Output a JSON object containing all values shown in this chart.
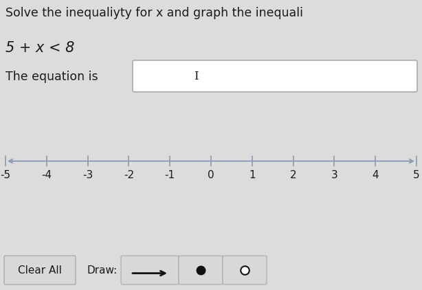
{
  "title": "Solve the inequaliyty for x and graph the inequali",
  "inequality_text": "5 + x < 8",
  "equation_label": "The equation is",
  "tick_labels": [
    "-5",
    "-4",
    "-3",
    "-2",
    "-1",
    "0",
    "1",
    "2",
    "3",
    "4",
    "5"
  ],
  "tick_values": [
    -5,
    -4,
    -3,
    -2,
    -1,
    0,
    1,
    2,
    3,
    4,
    5
  ],
  "bg_color": "#dcdcdc",
  "text_color": "#1a1a1a",
  "box_edge_color": "#aaaaaa",
  "box_fill": "#ffffff",
  "button_fill": "#d8d8d8",
  "button_border": "#aaaaaa",
  "line_color": "#8a9ab5",
  "tick_color": "#8a9ab5",
  "dark_color": "#111111",
  "clear_all_label": "Clear All",
  "draw_label": "Draw:"
}
